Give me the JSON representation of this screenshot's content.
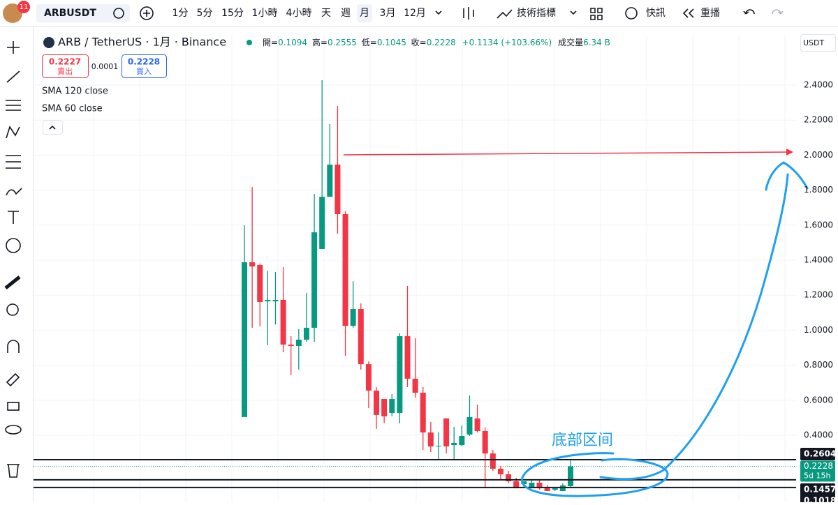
{
  "toolbar": {
    "badge": "11",
    "symbol": "ARBUSDT",
    "intervals": [
      "1分",
      "5分",
      "15分",
      "1小時",
      "4小時",
      "天",
      "週",
      "月",
      "3月",
      "12月"
    ],
    "indicators": "技術指標",
    "alerts": "快訊",
    "replay": "重播"
  },
  "legend": {
    "title": "ARB / TetherUS · 1月 · Binance",
    "open_label": "開=",
    "open": "0.1094",
    "high_label": "高=",
    "high": "0.2555",
    "low_label": "低=",
    "low": "0.1045",
    "close_label": "收=",
    "close": "0.2228",
    "change": "+0.1134 (+103.66%)",
    "volume_label": "成交量",
    "volume": "6.34 B",
    "sell_price": "0.2227",
    "sell_label": "賣出",
    "spread": "0.0001",
    "buy_price": "0.2228",
    "buy_label": "買入",
    "studies": [
      "SMA 120 close",
      "SMA 60 close"
    ],
    "currency": "USDT"
  },
  "chart_data": {
    "type": "candlestick",
    "up_color": "#089981",
    "down_color": "#f23645",
    "open": [
      0.504,
      1.388,
      1.372,
      1.165,
      1.165,
      1.173,
      0.918,
      0.91,
      0.946,
      1.014,
      1.464,
      1.762,
      1.946,
      1.663,
      1.025,
      1.121,
      0.806,
      0.655,
      0.607,
      0.527,
      0.527,
      0.966,
      0.723,
      0.643,
      0.416,
      0.336,
      0.496,
      0.344,
      0.344,
      0.404,
      0.496,
      0.424,
      0.296,
      0.209,
      0.177,
      0.137,
      0.121,
      0.105,
      0.129,
      0.097,
      0.089,
      0.081,
      0.1094
    ],
    "high": [
      1.599,
      1.818,
      1.38,
      1.34,
      1.332,
      1.36,
      0.966,
      1.006,
      1.213,
      1.778,
      2.428,
      2.177,
      2.28,
      1.68,
      1.28,
      1.153,
      0.822,
      0.675,
      0.607,
      0.635,
      0.982,
      1.253,
      0.954,
      0.675,
      0.476,
      0.416,
      0.496,
      0.448,
      0.456,
      0.627,
      0.575,
      0.444,
      0.316,
      0.225,
      0.197,
      0.157,
      0.137,
      0.145,
      0.145,
      0.117,
      0.097,
      0.125,
      0.2555
    ],
    "low": [
      0.504,
      1.014,
      1.022,
      0.914,
      1.033,
      0.874,
      0.743,
      0.775,
      0.934,
      0.934,
      1.464,
      1.762,
      1.551,
      0.854,
      1.014,
      0.775,
      0.555,
      0.436,
      0.468,
      0.508,
      0.468,
      0.675,
      0.615,
      0.316,
      0.304,
      0.257,
      0.296,
      0.257,
      0.336,
      0.396,
      0.416,
      0.105,
      0.197,
      0.145,
      0.125,
      0.097,
      0.097,
      0.097,
      0.089,
      0.081,
      0.081,
      0.081,
      0.1045
    ],
    "close": [
      1.388,
      1.364,
      1.161,
      1.173,
      1.173,
      0.918,
      0.91,
      0.946,
      1.014,
      1.559,
      1.762,
      1.946,
      1.663,
      1.025,
      1.121,
      0.806,
      0.655,
      0.516,
      0.508,
      0.607,
      0.966,
      0.723,
      0.643,
      0.416,
      0.336,
      0.34,
      0.336,
      0.356,
      0.396,
      0.504,
      0.424,
      0.296,
      0.209,
      0.177,
      0.137,
      0.097,
      0.137,
      0.129,
      0.105,
      0.081,
      0.097,
      0.113,
      0.2228
    ],
    "ylim": [
      0.0175,
      2.6869
    ],
    "yticks": [
      {
        "value": 2.4,
        "label": "2.4000"
      },
      {
        "value": 2.2,
        "label": "2.2000"
      },
      {
        "value": 2.0,
        "label": "2.0000"
      },
      {
        "value": 1.8,
        "label": "1.8000"
      },
      {
        "value": 1.6,
        "label": "1.6000"
      },
      {
        "value": 1.4,
        "label": "1.4000"
      },
      {
        "value": 1.2,
        "label": "1.2000"
      },
      {
        "value": 1.0,
        "label": "1.0000"
      },
      {
        "value": 0.8,
        "label": "0.8000"
      },
      {
        "value": 0.6,
        "label": "0.6000"
      },
      {
        "value": 0.4,
        "label": "0.4000"
      }
    ],
    "grid": true,
    "price_lines": [
      {
        "value": 0.2604,
        "label": "0.2604"
      },
      {
        "value": 0.1457,
        "label": "0.1457"
      },
      {
        "value": 0.1018,
        "label": "0.1018"
      }
    ],
    "current_price": {
      "value": 0.2228,
      "label": "0.2228"
    },
    "countdown": "5d 15h",
    "annotation": "底部区间"
  }
}
